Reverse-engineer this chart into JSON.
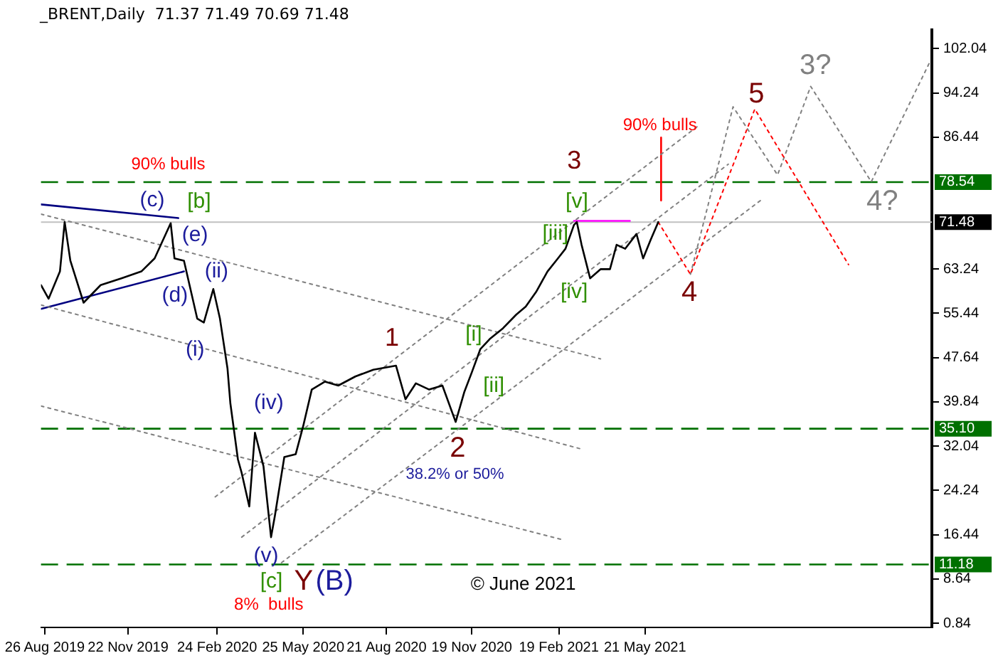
{
  "chart_data": {
    "type": "line",
    "title": "_BRENT,Daily  71.37 71.49 70.69 71.48",
    "xlim": [
      "2019-08-22",
      "2022-03-20"
    ],
    "xticks": [
      {
        "value": "2019-08-26",
        "label": "26 Aug 2019"
      },
      {
        "value": "2019-11-22",
        "label": "22 Nov 2019"
      },
      {
        "value": "2020-02-24",
        "label": "24 Feb 2020"
      },
      {
        "value": "2020-05-25",
        "label": "25 May 2020"
      },
      {
        "value": "2020-08-21",
        "label": "21 Aug 2020"
      },
      {
        "value": "2020-11-19",
        "label": "19 Nov 2020"
      },
      {
        "value": "2021-02-19",
        "label": "19 Feb 2021"
      },
      {
        "value": "2021-05-21",
        "label": "21 May 2021"
      }
    ],
    "ylim": [
      0.1,
      105.3
    ],
    "yticks": [
      0.84,
      8.64,
      16.44,
      24.24,
      32.04,
      39.84,
      47.64,
      55.44,
      63.24,
      86.44,
      94.24,
      102.04
    ],
    "grid": false,
    "legend": false,
    "marker": "none",
    "series": [
      {
        "color": "#000000",
        "line_style": "solid",
        "x": [
          "2019-08-22",
          "2019-08-30",
          "2019-09-11",
          "2019-09-16",
          "2019-09-22",
          "2019-10-06",
          "2019-10-24",
          "2019-11-15",
          "2019-12-06",
          "2019-12-20",
          "2020-01-06",
          "2020-01-10",
          "2020-01-20",
          "2020-02-03",
          "2020-02-10",
          "2020-02-20",
          "2020-02-27",
          "2020-03-06",
          "2020-03-09",
          "2020-03-17",
          "2020-03-21",
          "2020-03-29",
          "2020-04-04",
          "2020-04-13",
          "2020-04-21",
          "2020-04-25",
          "2020-05-05",
          "2020-05-17",
          "2020-05-25",
          "2020-06-03",
          "2020-06-17",
          "2020-07-01",
          "2020-07-19",
          "2020-08-07",
          "2020-08-31",
          "2020-09-10",
          "2020-09-21",
          "2020-10-05",
          "2020-10-19",
          "2020-11-02",
          "2020-11-11",
          "2020-11-19",
          "2020-11-28",
          "2020-12-08",
          "2020-12-22",
          "2021-01-05",
          "2021-01-15",
          "2021-01-26",
          "2021-02-07",
          "2021-02-18",
          "2021-02-26",
          "2021-03-07",
          "2021-03-10",
          "2021-03-15",
          "2021-03-24",
          "2021-04-04",
          "2021-04-14",
          "2021-04-21",
          "2021-04-30",
          "2021-05-12",
          "2021-05-19",
          "2021-05-27",
          "2021-06-04"
        ],
        "values": [
          60.4,
          58.0,
          62.8,
          71.5,
          64.7,
          57.3,
          60.4,
          61.6,
          62.8,
          65.1,
          71.3,
          65.1,
          64.7,
          54.5,
          53.8,
          59.7,
          54.5,
          45.7,
          39.6,
          29.7,
          27.3,
          21.4,
          34.4,
          28.5,
          16.0,
          19.7,
          30.1,
          30.6,
          35.6,
          42.0,
          43.4,
          42.7,
          44.3,
          45.5,
          46.2,
          40.3,
          43.1,
          42.0,
          42.7,
          36.3,
          41.5,
          45.0,
          49.1,
          50.9,
          52.8,
          55.2,
          56.6,
          59.2,
          62.8,
          65.1,
          66.8,
          71.0,
          71.5,
          67.5,
          61.6,
          63.2,
          63.2,
          67.5,
          66.8,
          69.4,
          65.1,
          68.4,
          71.5
        ]
      },
      {
        "color": "#ff0000",
        "line_style": "dotted",
        "x": [
          "2021-06-04",
          "2021-07-08",
          "2021-09-14",
          "2021-12-22"
        ],
        "values": [
          71.5,
          62.3,
          91.4,
          64.0
        ]
      },
      {
        "color": "#808080",
        "line_style": "dotted",
        "x": [
          "2021-07-08",
          "2021-08-22",
          "2021-10-08",
          "2021-11-12",
          "2022-01-15",
          "2022-03-17"
        ],
        "values": [
          62.3,
          91.8,
          79.8,
          95.4,
          78.6,
          99.4
        ]
      },
      {
        "color": "#808080",
        "line_style": "dotted",
        "x": [
          "2020-02-22",
          "2021-07-15"
        ],
        "values": [
          23.1,
          88.3
        ]
      },
      {
        "color": "#808080",
        "line_style": "dotted",
        "x": [
          "2020-03-21",
          "2021-08-17"
        ],
        "values": [
          16.0,
          81.7
        ]
      },
      {
        "color": "#808080",
        "line_style": "dotted",
        "x": [
          "2020-05-02",
          "2021-09-20"
        ],
        "values": [
          11.5,
          75.3
        ]
      },
      {
        "color": "#808080",
        "line_style": "dotted",
        "x": [
          "2019-08-22",
          "2021-04-04"
        ],
        "values": [
          72.9,
          47.4
        ]
      },
      {
        "color": "#808080",
        "line_style": "dotted",
        "x": [
          "2019-08-22",
          "2021-03-13"
        ],
        "values": [
          56.9,
          31.6
        ]
      },
      {
        "color": "#808080",
        "line_style": "dotted",
        "x": [
          "2019-08-22",
          "2021-02-24"
        ],
        "values": [
          39.1,
          15.5
        ]
      },
      {
        "color": "#000080",
        "line_style": "solid",
        "x": [
          "2019-08-22",
          "2020-01-14"
        ],
        "values": [
          74.6,
          72.2
        ]
      },
      {
        "color": "#000080",
        "line_style": "solid",
        "x": [
          "2019-08-22",
          "2020-01-20"
        ],
        "values": [
          56.2,
          62.8
        ]
      },
      {
        "color": "#ff00ff",
        "line_style": "solid",
        "x": [
          "2021-03-07",
          "2021-05-05"
        ],
        "values": [
          71.7,
          71.7
        ]
      },
      {
        "color": "#ff0000",
        "line_style": "solid",
        "x": [
          "2021-06-07",
          "2021-06-07"
        ],
        "values": [
          86.4,
          75.3
        ]
      }
    ],
    "ref_lines": [
      {
        "axis": "y",
        "value": 78.54,
        "label": "78.54",
        "color": "#007000",
        "line_style": "dashed"
      },
      {
        "axis": "y",
        "value": 71.48,
        "label": "71.48",
        "color": "#c0c0c0",
        "line_style": "solid"
      },
      {
        "axis": "y",
        "value": 35.1,
        "label": "35.10",
        "color": "#007000",
        "line_style": "dashed"
      },
      {
        "axis": "y",
        "value": 11.18,
        "label": "11.18",
        "color": "#007000",
        "line_style": "dashed"
      }
    ],
    "annotations": [
      "90% bulls",
      "(c)",
      "[b]",
      "(e)",
      "(d)",
      "(ii)",
      "(i)",
      "(iv)",
      "(v)",
      "[c]",
      "Y",
      "(B)",
      "8%  bulls",
      "1",
      "2",
      "38.2% or 50%",
      "[i]",
      "[ii]",
      "3",
      "[v]",
      "[iii]",
      "[iv]",
      "90% bulls",
      "5",
      "4",
      "3?",
      "4?",
      "© June 2021"
    ]
  }
}
